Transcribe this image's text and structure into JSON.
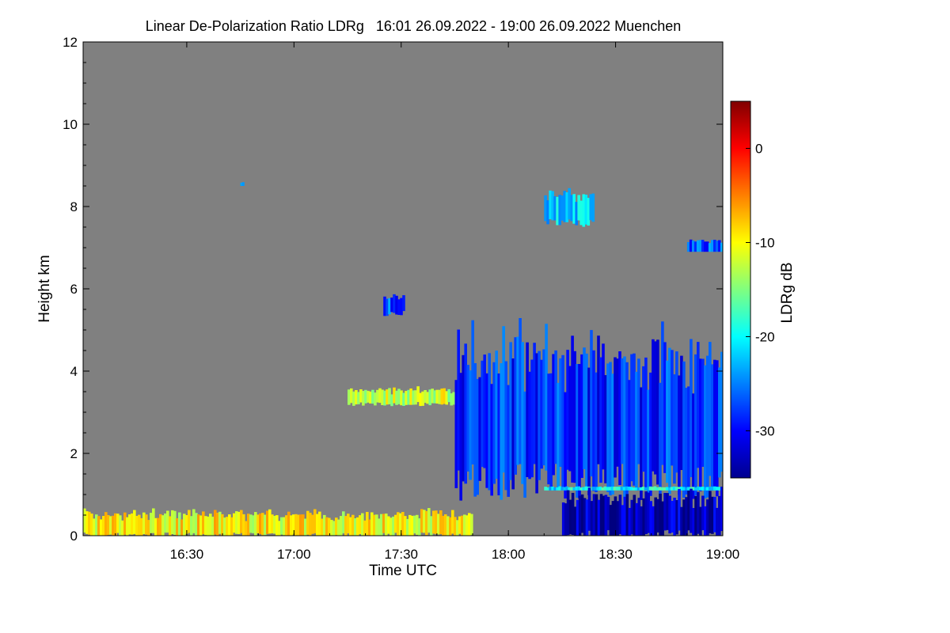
{
  "chart_data": {
    "type": "heatmap",
    "title": "Linear De-Polarization Ratio LDRg   16:01 26.09.2022 - 19:00 26.09.2022 Muenchen",
    "xlabel": "Time UTC",
    "ylabel": "Height km",
    "x_range": [
      "16:01",
      "19:00"
    ],
    "x_ticks": [
      "16:30",
      "17:00",
      "17:30",
      "18:00",
      "18:30",
      "19:00"
    ],
    "y_range": [
      0,
      12
    ],
    "y_ticks": [
      "0",
      "2",
      "4",
      "6",
      "8",
      "10",
      "12"
    ],
    "colorbar": {
      "label": "LDRg dB",
      "range": [
        -35,
        5
      ],
      "ticks": [
        "0",
        "-10",
        "-20",
        "-30"
      ],
      "colormap": "jet"
    },
    "background_color": "#808080",
    "features": [
      {
        "start": "16:01",
        "end": "17:50",
        "base_km": 0.0,
        "top_km": 0.6,
        "ldr_db": -10
      },
      {
        "start": "17:15",
        "end": "17:55",
        "base_km": 3.2,
        "top_km": 3.6,
        "ldr_db": -12
      },
      {
        "start": "17:45",
        "end": "19:00",
        "base_km": 1.3,
        "top_km": 4.9,
        "ldr_db": -28
      },
      {
        "start": "18:10",
        "end": "19:00",
        "base_km": 1.1,
        "top_km": 1.2,
        "ldr_db": -20
      },
      {
        "start": "18:15",
        "end": "19:00",
        "base_km": 0.0,
        "top_km": 1.1,
        "ldr_db": -33
      },
      {
        "start": "18:50",
        "end": "19:00",
        "base_km": 6.9,
        "top_km": 7.2,
        "ldr_db": -27
      },
      {
        "start": "17:25",
        "end": "17:31",
        "base_km": 5.4,
        "top_km": 5.9,
        "ldr_db": -27
      },
      {
        "start": "16:45",
        "end": "16:46",
        "base_km": 8.5,
        "top_km": 8.6,
        "ldr_db": -25
      },
      {
        "start": "18:10",
        "end": "18:24",
        "base_km": 7.6,
        "top_km": 8.4,
        "ldr_db": -22
      }
    ]
  }
}
